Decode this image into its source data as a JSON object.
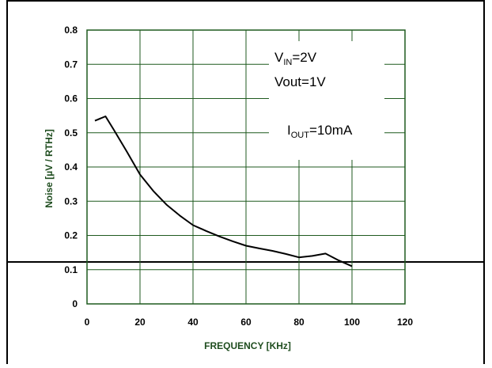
{
  "chart_data": {
    "type": "line",
    "title": "",
    "xlabel": "FREQUENCY [KHz]",
    "ylabel": "Noise [µV / RTHz]",
    "xlim": [
      0,
      120
    ],
    "ylim": [
      0,
      0.8
    ],
    "x_ticks": [
      "0",
      "20",
      "40",
      "60",
      "80",
      "100",
      "120"
    ],
    "y_ticks": [
      "0",
      "0.1",
      "0.2",
      "0.3",
      "0.4",
      "0.5",
      "0.6",
      "0.7",
      "0.8"
    ],
    "grid": true,
    "series": [
      {
        "x": [
          3,
          7,
          10,
          15,
          20,
          25,
          30,
          35,
          40,
          45,
          50,
          55,
          60,
          65,
          70,
          75,
          80,
          85,
          90,
          95,
          100
        ],
        "y": [
          0.535,
          0.548,
          0.51,
          0.445,
          0.378,
          0.33,
          0.29,
          0.258,
          0.23,
          0.213,
          0.197,
          0.183,
          0.17,
          0.162,
          0.155,
          0.146,
          0.136,
          0.14,
          0.147,
          0.127,
          0.11
        ],
        "color": "#000000"
      }
    ],
    "annotations": {
      "vin": {
        "main": "V",
        "sub": "IN",
        "rest": "=2V"
      },
      "vout": {
        "main": "Vout=1V"
      },
      "iout": {
        "main": "I",
        "sub": "OUT",
        "rest": "=10mA"
      }
    },
    "colors": {
      "grid": "#1f5a1f",
      "axis_title": "#1f4d1f",
      "line": "#000000"
    }
  }
}
